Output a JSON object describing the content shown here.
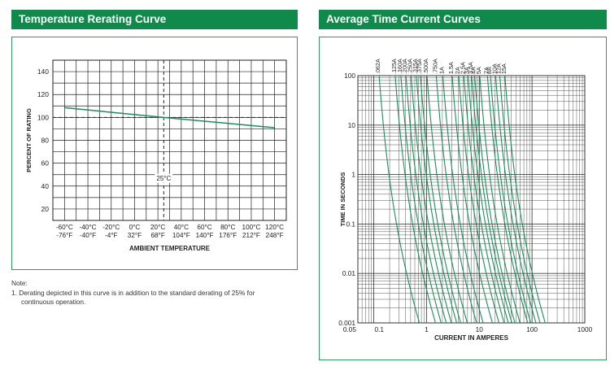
{
  "left_panel": {
    "header": "Temperature Rerating Curve",
    "note_title": "Note:",
    "note_line1": "1. Derating depicted in this curve is in addition to the standard derating of 25% for",
    "note_line2": "continuous operation."
  },
  "right_panel": {
    "header": "Average Time Current Curves"
  },
  "colors": {
    "accent": "#0f8a4b",
    "curve": "#1a8f5c",
    "border": "#2e9a5e"
  },
  "chart_data": [
    {
      "type": "line",
      "title": "Temperature Rerating Curve",
      "xlabel": "AMBIENT TEMPERATURE",
      "ylabel": "PERCENT OF RATING",
      "xlim": [
        -70,
        130
      ],
      "ylim": [
        10,
        150
      ],
      "x_ticks_c": [
        "-60°C",
        "-40°C",
        "-20°C",
        "0°C",
        "20°C",
        "40°C",
        "60°C",
        "80°C",
        "100°C",
        "120°C"
      ],
      "x_ticks_f": [
        "-76°F",
        "-40°F",
        "-4°F",
        "32°F",
        "68°F",
        "104°F",
        "140°F",
        "176°F",
        "212°F",
        "248°F"
      ],
      "x_tick_values": [
        -60,
        -40,
        -20,
        0,
        20,
        40,
        60,
        80,
        100,
        120
      ],
      "y_ticks": [
        20,
        40,
        60,
        80,
        100,
        120,
        140
      ],
      "grid": true,
      "reference_line_y": 100,
      "reference_line_x": 25,
      "reference_label": "25°C",
      "series": [
        {
          "x": [
            -60,
            25,
            120
          ],
          "values": [
            108.5,
            100,
            91
          ]
        }
      ]
    },
    {
      "type": "line",
      "title": "Average Time Current Curves",
      "xlabel": "CURRENT IN AMPERES",
      "ylabel": "TIME IN SECONDS",
      "x_scale": "log",
      "y_scale": "log",
      "xlim": [
        0.05,
        1000
      ],
      "ylim": [
        0.001,
        100
      ],
      "x_tick_labels": [
        "0.05",
        "0.1",
        "1",
        "10",
        "100",
        "1000"
      ],
      "x_tick_values": [
        0.05,
        0.1,
        1,
        10,
        100,
        1000
      ],
      "y_tick_labels": [
        "100",
        "10",
        "1",
        "0.1",
        "0.01",
        "0.001"
      ],
      "y_tick_values": [
        100,
        10,
        1,
        0.1,
        0.01,
        0.001
      ],
      "grid": true,
      "series": [
        {
          "name": ".062A",
          "rating": 0.062
        },
        {
          "name": ".125A",
          "rating": 0.125
        },
        {
          "name": ".160A",
          "rating": 0.16
        },
        {
          "name": ".200A",
          "rating": 0.2
        },
        {
          "name": ".250A",
          "rating": 0.25
        },
        {
          "name": ".315A",
          "rating": 0.315
        },
        {
          "name": ".375A",
          "rating": 0.375
        },
        {
          "name": ".500A",
          "rating": 0.5
        },
        {
          "name": ".750A",
          "rating": 0.75
        },
        {
          "name": "1A",
          "rating": 1
        },
        {
          "name": "1.5A",
          "rating": 1.5
        },
        {
          "name": "2A",
          "rating": 2
        },
        {
          "name": "2.5A",
          "rating": 2.5
        },
        {
          "name": "3A",
          "rating": 3
        },
        {
          "name": "3.5A",
          "rating": 3.5
        },
        {
          "name": "4A",
          "rating": 4
        },
        {
          "name": "5A",
          "rating": 5
        },
        {
          "name": "7A",
          "rating": 7
        },
        {
          "name": "8A",
          "rating": 8
        },
        {
          "name": "10A",
          "rating": 10
        },
        {
          "name": "12A",
          "rating": 12
        },
        {
          "name": "15A",
          "rating": 15
        }
      ]
    }
  ]
}
